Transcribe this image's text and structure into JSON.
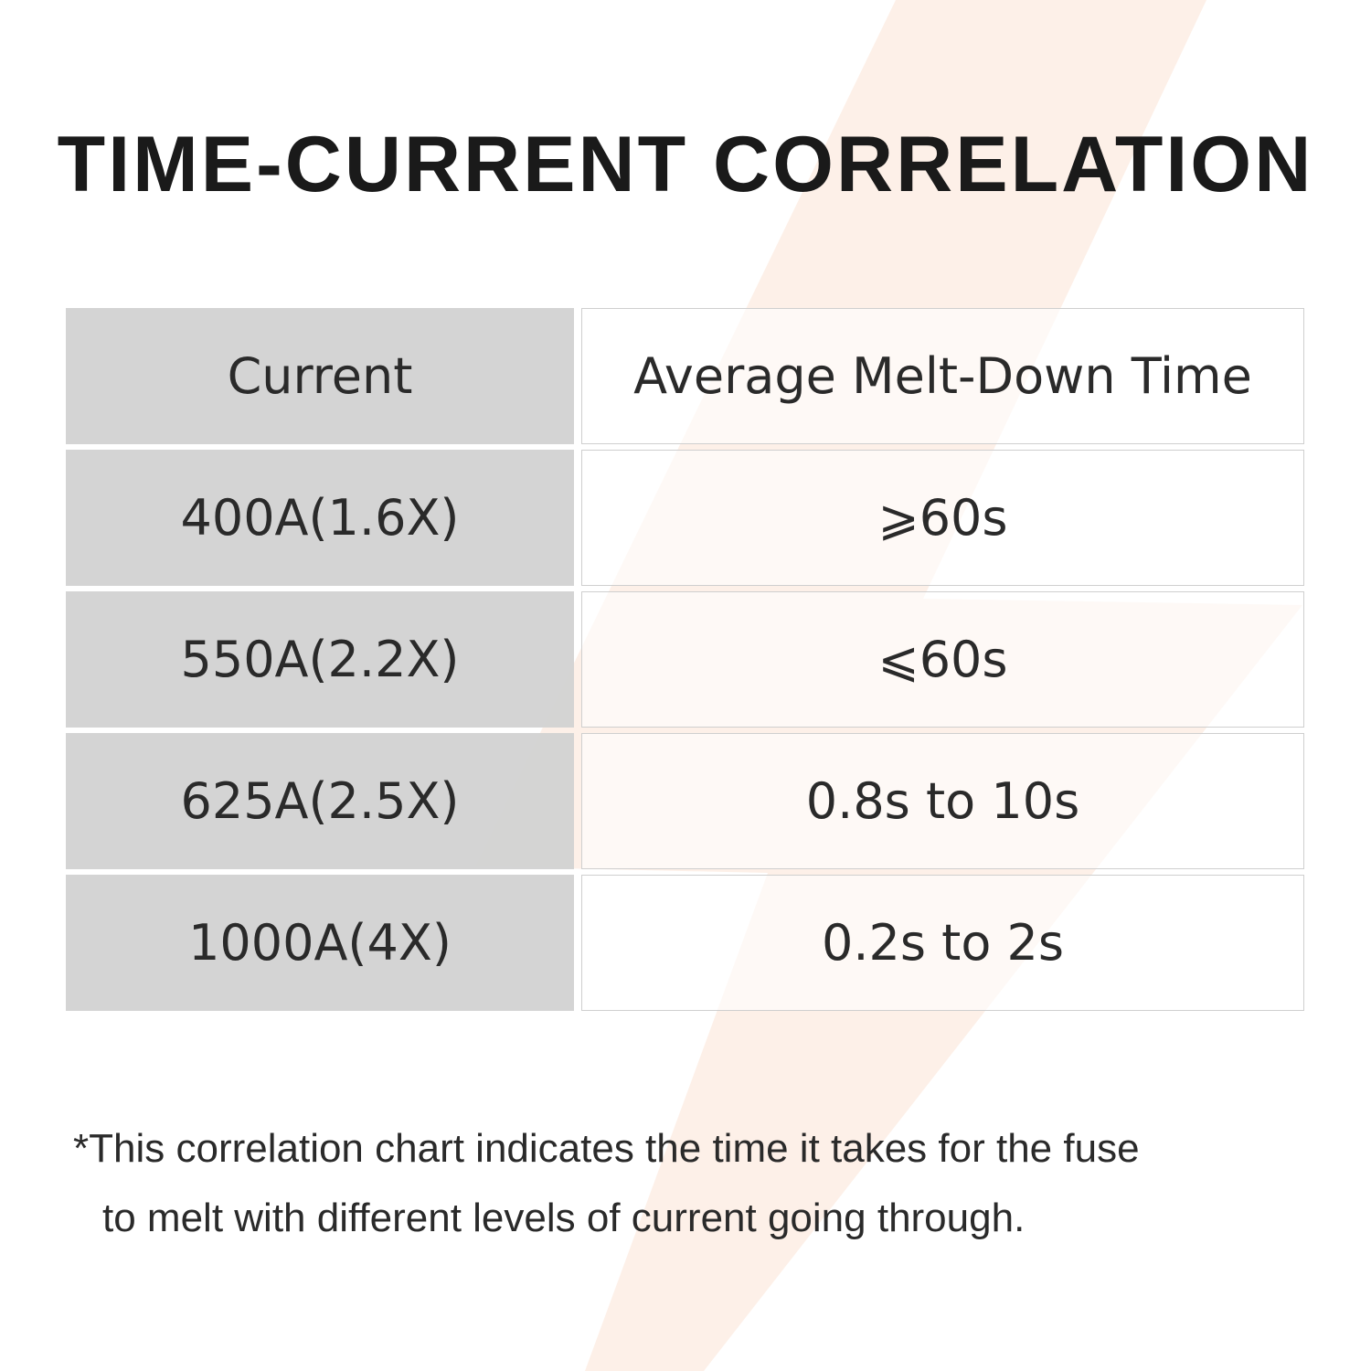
{
  "title": "TIME-CURRENT CORRELATION",
  "table": {
    "header": [
      "Current",
      "Average Melt-Down Time"
    ],
    "rows": [
      [
        "400A(1.6X)",
        "⩾60s"
      ],
      [
        "550A(2.2X)",
        "⩽60s"
      ],
      [
        "625A(2.5X)",
        "0.8s to 10s"
      ],
      [
        "1000A(4X)",
        "0.2s to 2s"
      ]
    ]
  },
  "note": {
    "lines": [
      "*This correlation chart indicates the time it takes for the fuse",
      "to melt with different levels of current going through."
    ]
  }
}
